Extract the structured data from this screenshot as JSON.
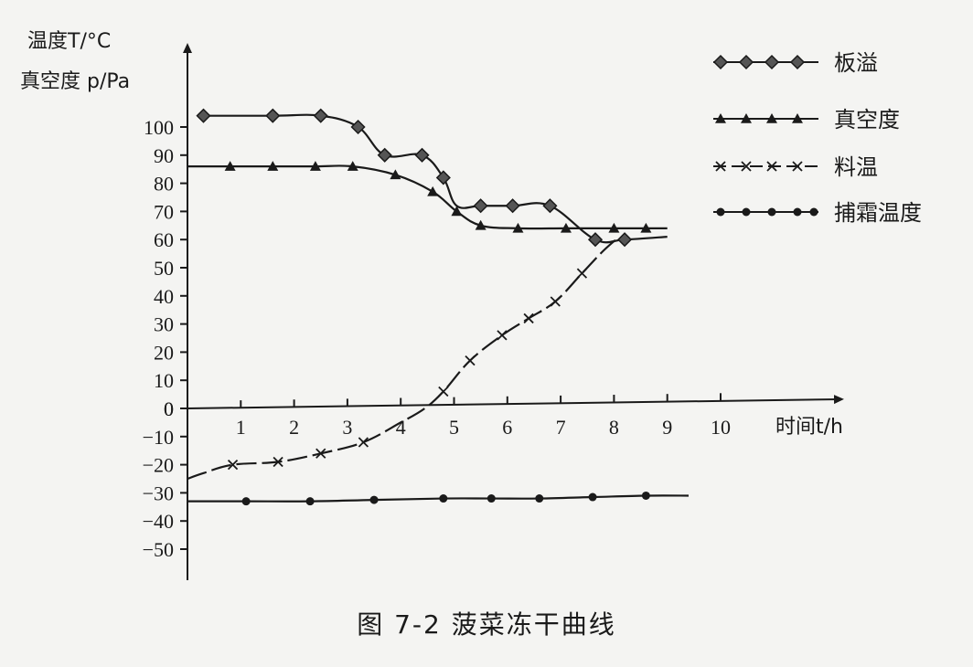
{
  "caption": "图 7-2    菠菜冻干曲线",
  "chart_data": {
    "type": "line",
    "y_label_line1": "温度T/°C",
    "y_label_line2": "真空度 p/Pa",
    "x_label": "时间t/h",
    "x_ticks": [
      1,
      2,
      3,
      4,
      5,
      6,
      7,
      8,
      9,
      10
    ],
    "y_ticks": [
      -50,
      -40,
      -30,
      -20,
      -10,
      0,
      10,
      20,
      30,
      40,
      50,
      60,
      70,
      80,
      90,
      100
    ],
    "xlim": [
      0,
      11.5
    ],
    "ylim": [
      -60,
      120
    ],
    "grid": false,
    "legend_position": "top-right",
    "series": [
      {
        "name": "板溢",
        "marker": "diamond",
        "points": [
          [
            0.3,
            104
          ],
          [
            1.6,
            104
          ],
          [
            2.5,
            104
          ],
          [
            3.2,
            100
          ],
          [
            3.7,
            90
          ],
          [
            4.4,
            90
          ],
          [
            4.8,
            82
          ],
          [
            5.05,
            72
          ],
          [
            5.5,
            72
          ],
          [
            6.1,
            72
          ],
          [
            6.8,
            72
          ],
          [
            7.65,
            60
          ],
          [
            8.2,
            60
          ],
          [
            9.0,
            61
          ]
        ],
        "markers_at": [
          0.3,
          1.6,
          2.5,
          3.2,
          3.7,
          4.4,
          4.8,
          5.5,
          6.1,
          6.8,
          7.65,
          8.2
        ]
      },
      {
        "name": "真空度",
        "marker": "triangle",
        "points": [
          [
            0.0,
            86
          ],
          [
            0.8,
            86
          ],
          [
            1.6,
            86
          ],
          [
            2.4,
            86
          ],
          [
            3.1,
            86
          ],
          [
            3.9,
            83
          ],
          [
            4.6,
            77
          ],
          [
            5.05,
            70
          ],
          [
            5.5,
            65
          ],
          [
            6.2,
            64
          ],
          [
            7.1,
            64
          ],
          [
            8.0,
            64
          ],
          [
            8.6,
            64
          ],
          [
            9.0,
            64
          ]
        ],
        "markers_at": [
          0.8,
          1.6,
          2.4,
          3.1,
          3.9,
          4.6,
          5.05,
          5.5,
          6.2,
          7.1,
          8.0,
          8.6
        ]
      },
      {
        "name": "料温",
        "marker": "cross",
        "points": [
          [
            0.0,
            -25
          ],
          [
            0.3,
            -23
          ],
          [
            0.85,
            -20
          ],
          [
            1.7,
            -19
          ],
          [
            2.5,
            -16
          ],
          [
            3.3,
            -12
          ],
          [
            4.0,
            -5
          ],
          [
            4.45,
            0
          ],
          [
            4.8,
            6
          ],
          [
            5.3,
            17
          ],
          [
            5.9,
            26
          ],
          [
            6.4,
            32
          ],
          [
            6.9,
            38
          ],
          [
            7.4,
            48
          ],
          [
            7.8,
            56
          ],
          [
            8.1,
            61
          ]
        ],
        "markers_at": [
          0.85,
          1.7,
          2.5,
          3.3,
          4.8,
          5.3,
          5.9,
          6.4,
          6.9,
          7.4
        ]
      },
      {
        "name": "捕霜温度",
        "marker": "circle",
        "points": [
          [
            0.0,
            -33
          ],
          [
            1.1,
            -33
          ],
          [
            2.3,
            -33
          ],
          [
            3.5,
            -32.5
          ],
          [
            4.8,
            -32
          ],
          [
            5.7,
            -32
          ],
          [
            6.6,
            -32
          ],
          [
            7.6,
            -31.5
          ],
          [
            8.6,
            -31
          ],
          [
            9.4,
            -31
          ]
        ],
        "markers_at": [
          1.1,
          2.3,
          3.5,
          4.8,
          5.7,
          6.6,
          7.6,
          8.6
        ]
      }
    ]
  }
}
